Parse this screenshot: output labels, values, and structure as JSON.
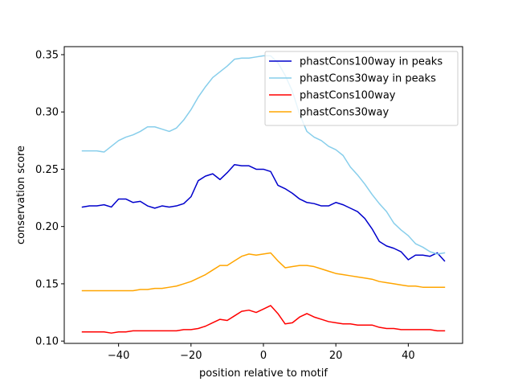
{
  "chart_data": {
    "type": "line",
    "title": "",
    "xlabel": "position relative to motif",
    "ylabel": "conservation score",
    "xlim": [
      -55,
      55
    ],
    "ylim": [
      0.098,
      0.357
    ],
    "xticks": [
      -40,
      -20,
      0,
      20,
      40
    ],
    "xtick_labels": [
      "−40",
      "−20",
      "0",
      "20",
      "40"
    ],
    "yticks": [
      0.1,
      0.15,
      0.2,
      0.25,
      0.3,
      0.35
    ],
    "ytick_labels": [
      "0.10",
      "0.15",
      "0.20",
      "0.25",
      "0.30",
      "0.35"
    ],
    "grid": false,
    "legend_position": "top-right",
    "series": [
      {
        "name": "phastCons100way in peaks",
        "color": "#0000cc",
        "x": [
          -50,
          -48,
          -46,
          -44,
          -42,
          -40,
          -38,
          -36,
          -34,
          -32,
          -30,
          -28,
          -26,
          -24,
          -22,
          -20,
          -18,
          -16,
          -14,
          -12,
          -10,
          -8,
          -6,
          -4,
          -2,
          0,
          2,
          4,
          6,
          8,
          10,
          12,
          14,
          16,
          18,
          20,
          22,
          24,
          26,
          28,
          30,
          32,
          34,
          36,
          38,
          40,
          42,
          44,
          46,
          48,
          50
        ],
        "y": [
          0.217,
          0.218,
          0.218,
          0.219,
          0.217,
          0.224,
          0.224,
          0.221,
          0.222,
          0.218,
          0.216,
          0.218,
          0.217,
          0.218,
          0.22,
          0.226,
          0.24,
          0.244,
          0.246,
          0.241,
          0.247,
          0.254,
          0.253,
          0.253,
          0.25,
          0.25,
          0.248,
          0.236,
          0.233,
          0.229,
          0.224,
          0.221,
          0.22,
          0.218,
          0.218,
          0.221,
          0.219,
          0.216,
          0.213,
          0.207,
          0.198,
          0.187,
          0.183,
          0.181,
          0.178,
          0.171,
          0.175,
          0.175,
          0.174,
          0.177,
          0.17
        ]
      },
      {
        "name": "phastCons30way in peaks",
        "color": "#87ceeb",
        "x": [
          -50,
          -48,
          -46,
          -44,
          -42,
          -40,
          -38,
          -36,
          -34,
          -32,
          -30,
          -28,
          -26,
          -24,
          -22,
          -20,
          -18,
          -16,
          -14,
          -12,
          -10,
          -8,
          -6,
          -4,
          -2,
          0,
          2,
          4,
          6,
          8,
          10,
          12,
          14,
          16,
          18,
          20,
          22,
          24,
          26,
          28,
          30,
          32,
          34,
          36,
          38,
          40,
          42,
          44,
          46,
          48,
          50
        ],
        "y": [
          0.266,
          0.266,
          0.266,
          0.265,
          0.27,
          0.275,
          0.278,
          0.28,
          0.283,
          0.287,
          0.287,
          0.285,
          0.283,
          0.286,
          0.293,
          0.302,
          0.313,
          0.322,
          0.33,
          0.335,
          0.34,
          0.346,
          0.347,
          0.347,
          0.348,
          0.349,
          0.349,
          0.343,
          0.332,
          0.318,
          0.298,
          0.283,
          0.278,
          0.275,
          0.27,
          0.267,
          0.262,
          0.252,
          0.245,
          0.237,
          0.228,
          0.22,
          0.213,
          0.203,
          0.197,
          0.192,
          0.185,
          0.182,
          0.178,
          0.176,
          0.177
        ]
      },
      {
        "name": "phastCons100way",
        "color": "#ff0000",
        "x": [
          -50,
          -48,
          -46,
          -44,
          -42,
          -40,
          -38,
          -36,
          -34,
          -32,
          -30,
          -28,
          -26,
          -24,
          -22,
          -20,
          -18,
          -16,
          -14,
          -12,
          -10,
          -8,
          -6,
          -4,
          -2,
          0,
          2,
          4,
          6,
          8,
          10,
          12,
          14,
          16,
          18,
          20,
          22,
          24,
          26,
          28,
          30,
          32,
          34,
          36,
          38,
          40,
          42,
          44,
          46,
          48,
          50
        ],
        "y": [
          0.108,
          0.108,
          0.108,
          0.108,
          0.107,
          0.108,
          0.108,
          0.109,
          0.109,
          0.109,
          0.109,
          0.109,
          0.109,
          0.109,
          0.11,
          0.11,
          0.111,
          0.113,
          0.116,
          0.119,
          0.118,
          0.122,
          0.126,
          0.127,
          0.125,
          0.128,
          0.131,
          0.124,
          0.115,
          0.116,
          0.121,
          0.124,
          0.121,
          0.119,
          0.117,
          0.116,
          0.115,
          0.115,
          0.114,
          0.114,
          0.114,
          0.112,
          0.111,
          0.111,
          0.11,
          0.11,
          0.11,
          0.11,
          0.11,
          0.109,
          0.109
        ]
      },
      {
        "name": "phastCons30way",
        "color": "#ffa500",
        "x": [
          -50,
          -48,
          -46,
          -44,
          -42,
          -40,
          -38,
          -36,
          -34,
          -32,
          -30,
          -28,
          -26,
          -24,
          -22,
          -20,
          -18,
          -16,
          -14,
          -12,
          -10,
          -8,
          -6,
          -4,
          -2,
          0,
          2,
          4,
          6,
          8,
          10,
          12,
          14,
          16,
          18,
          20,
          22,
          24,
          26,
          28,
          30,
          32,
          34,
          36,
          38,
          40,
          42,
          44,
          46,
          48,
          50
        ],
        "y": [
          0.144,
          0.144,
          0.144,
          0.144,
          0.144,
          0.144,
          0.144,
          0.144,
          0.145,
          0.145,
          0.146,
          0.146,
          0.147,
          0.148,
          0.15,
          0.152,
          0.155,
          0.158,
          0.162,
          0.166,
          0.166,
          0.17,
          0.174,
          0.176,
          0.175,
          0.176,
          0.177,
          0.17,
          0.164,
          0.165,
          0.166,
          0.166,
          0.165,
          0.163,
          0.161,
          0.159,
          0.158,
          0.157,
          0.156,
          0.155,
          0.154,
          0.152,
          0.151,
          0.15,
          0.149,
          0.148,
          0.148,
          0.147,
          0.147,
          0.147,
          0.147
        ]
      }
    ]
  }
}
